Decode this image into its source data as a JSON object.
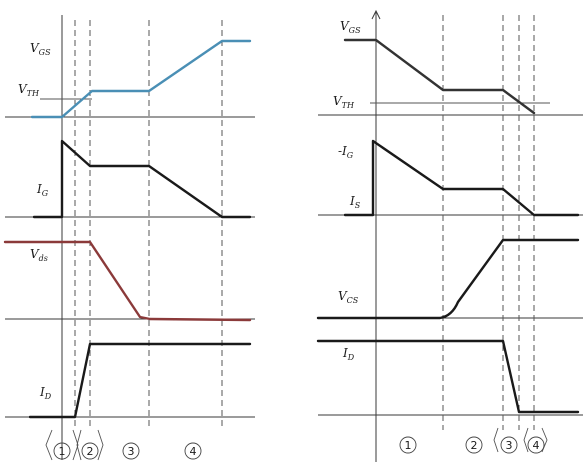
{
  "colors": {
    "vgs_left": "#4a8fb5",
    "vds_left": "#8b3a3a",
    "black": "#1a1a1a"
  },
  "left": {
    "labels": {
      "vgs": {
        "main": "V",
        "sub": "GS"
      },
      "vth": {
        "main": "V",
        "sub": "TH"
      },
      "ig": {
        "main": "I",
        "sub": "G"
      },
      "vds": {
        "main": "V",
        "sub": "ds"
      },
      "id": {
        "main": "I",
        "sub": "D"
      }
    },
    "stages": [
      "1",
      "2",
      "3",
      "4"
    ]
  },
  "right": {
    "labels": {
      "vgs": {
        "main": "V",
        "sub": "GS"
      },
      "vth": {
        "main": "V",
        "sub": "TH"
      },
      "ig": {
        "main": "-I",
        "sub": "G"
      },
      "is": {
        "main": "I",
        "sub": "S"
      },
      "vds": {
        "main": "V",
        "sub": "CS"
      },
      "id": {
        "main": "I",
        "sub": "D"
      }
    },
    "stages": [
      "1",
      "2",
      "3",
      "4"
    ]
  }
}
